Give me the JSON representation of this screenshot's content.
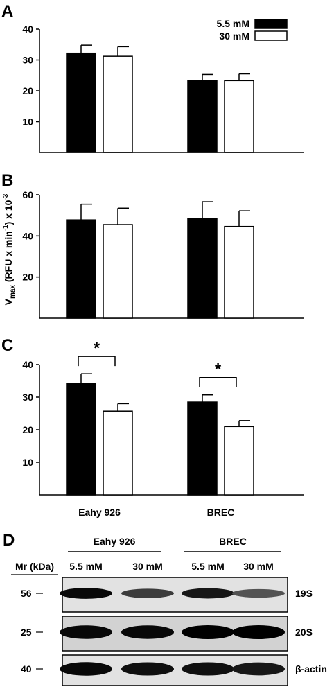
{
  "legend": {
    "items": [
      {
        "label": "5.5 mM",
        "color": "#000000"
      },
      {
        "label": "30  mM",
        "color": "#ffffff"
      }
    ]
  },
  "y_axis_label": {
    "main": "V",
    "sub": "max",
    "rest1": " (RFU x min",
    "sup1": "-1",
    "rest2": ") x 10",
    "sup2": "-3"
  },
  "chart_data": [
    {
      "panel": "A",
      "type": "bar",
      "categories": [
        "Eahy 926",
        "BREC"
      ],
      "ylim": [
        0,
        40
      ],
      "yticks": [
        10,
        20,
        30,
        40
      ],
      "series": [
        {
          "name": "5.5 mM",
          "color": "#000000",
          "values": [
            32.2,
            23.3
          ],
          "errors": [
            2.6,
            2.0
          ]
        },
        {
          "name": "30  mM",
          "color": "#ffffff",
          "values": [
            31.2,
            23.3
          ],
          "errors": [
            3.1,
            2.2
          ]
        }
      ],
      "significance": []
    },
    {
      "panel": "B",
      "type": "bar",
      "categories": [
        "Eahy 926",
        "BREC"
      ],
      "ylim": [
        0,
        60
      ],
      "yticks": [
        20,
        40,
        60
      ],
      "series": [
        {
          "name": "5.5 mM",
          "color": "#000000",
          "values": [
            47.8,
            48.6
          ],
          "errors": [
            7.6,
            8.0
          ]
        },
        {
          "name": "30  mM",
          "color": "#ffffff",
          "values": [
            45.5,
            44.6
          ],
          "errors": [
            8.0,
            7.6
          ]
        }
      ],
      "significance": []
    },
    {
      "panel": "C",
      "type": "bar",
      "categories": [
        "Eahy 926",
        "BREC"
      ],
      "category_labels_visible": true,
      "ylim": [
        0,
        40
      ],
      "yticks": [
        10,
        20,
        30,
        40
      ],
      "series": [
        {
          "name": "5.5 mM",
          "color": "#000000",
          "values": [
            34.3,
            28.5
          ],
          "errors": [
            2.9,
            2.2
          ]
        },
        {
          "name": "30  mM",
          "color": "#ffffff",
          "values": [
            25.7,
            21.0
          ],
          "errors": [
            2.3,
            1.8
          ]
        }
      ],
      "significance": [
        {
          "category": 0,
          "label": "*"
        },
        {
          "category": 1,
          "label": "*"
        }
      ]
    }
  ],
  "western_blot": {
    "panel": "D",
    "mr_label": "Mr (kDa)",
    "groups": [
      {
        "name": "Eahy 926",
        "conditions": [
          "5.5 mM",
          "30 mM"
        ]
      },
      {
        "name": "BREC",
        "conditions": [
          "5.5 mM",
          "30 mM"
        ]
      }
    ],
    "rows": [
      {
        "marker": "56",
        "protein": "19S",
        "intensities": [
          0.95,
          0.6,
          0.85,
          0.45
        ]
      },
      {
        "marker": "25",
        "protein": "20S",
        "intensities": [
          0.95,
          0.95,
          1.0,
          1.0
        ]
      },
      {
        "marker": "40",
        "protein": "β-actin",
        "intensities": [
          0.95,
          0.9,
          0.9,
          0.85
        ]
      }
    ]
  }
}
